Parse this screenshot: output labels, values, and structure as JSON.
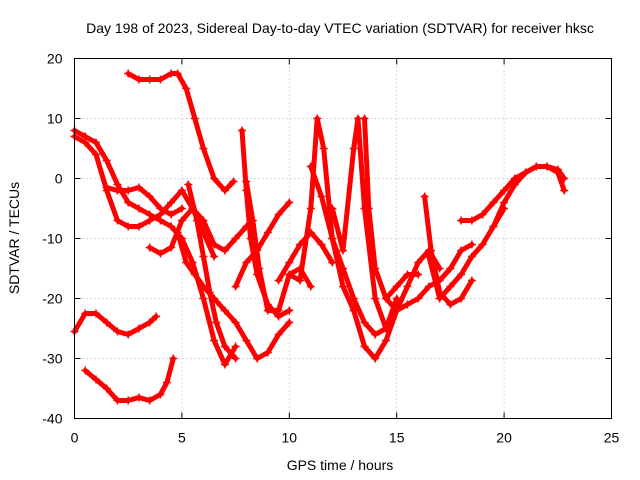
{
  "chart_data": {
    "type": "scatter",
    "title": "Day 198 of 2023, Sidereal Day-to-day VTEC variation (SDTVAR) for receiver hksc",
    "xlabel": "GPS time / hours",
    "ylabel": "SDTVAR / TECUs",
    "xlim": [
      0,
      25
    ],
    "ylim": [
      -40,
      20
    ],
    "xticks": [
      0,
      5,
      10,
      15,
      20,
      25
    ],
    "yticks": [
      -40,
      -30,
      -20,
      -10,
      0,
      10,
      20
    ],
    "grid": true,
    "marker": "+",
    "color": "#ff0000",
    "series": [
      {
        "name": "trace-1",
        "x": [
          0.0,
          0.5,
          1.0,
          1.5,
          2.0,
          2.5,
          3.0,
          3.5,
          3.8
        ],
        "y": [
          -25.5,
          -22.5,
          -22.5,
          -24.0,
          -25.5,
          -26.0,
          -25.0,
          -24.0,
          -23.0
        ]
      },
      {
        "name": "trace-2",
        "x": [
          0.5,
          1.0,
          1.5,
          2.0,
          2.5,
          3.0,
          3.5,
          4.0,
          4.3,
          4.6
        ],
        "y": [
          -32,
          -33.5,
          -35,
          -37,
          -37,
          -36.5,
          -37,
          -36,
          -34,
          -30
        ]
      },
      {
        "name": "trace-3",
        "x": [
          2.5,
          3.0,
          3.5,
          4.0,
          4.5,
          4.8,
          5.2,
          5.6,
          6.0,
          6.5,
          7.0,
          7.4
        ],
        "y": [
          17.5,
          16.5,
          16.5,
          16.5,
          17.5,
          17.5,
          15,
          10,
          5,
          0,
          -2,
          -0.5
        ]
      },
      {
        "name": "trace-4",
        "x": [
          0.0,
          0.5,
          1.0,
          1.5,
          2.0,
          2.5,
          3.0,
          3.5,
          4.0,
          4.5,
          5.0,
          5.5,
          6.0,
          6.5,
          7.0,
          7.5
        ],
        "y": [
          8,
          7,
          6,
          3,
          -1,
          -4,
          -5,
          -6,
          -7,
          -8,
          -10,
          -14,
          -20,
          -27,
          -31,
          -28
        ]
      },
      {
        "name": "trace-5",
        "x": [
          0.0,
          0.5,
          1.0,
          1.5,
          2.0,
          2.5,
          3.0,
          3.5,
          4.0,
          4.5,
          5.0,
          5.5,
          6.0,
          6.5
        ],
        "y": [
          7,
          6,
          4,
          -2,
          -7,
          -8,
          -8,
          -7,
          -6,
          -4,
          -2,
          -5,
          -9,
          -13
        ]
      },
      {
        "name": "trace-6",
        "x": [
          1.5,
          2.0,
          2.5,
          3.0,
          3.5,
          4.0,
          4.5,
          5.0
        ],
        "y": [
          -1.5,
          -2,
          -2,
          -1.5,
          -3,
          -5,
          -6,
          -5
        ]
      },
      {
        "name": "trace-7",
        "x": [
          3.5,
          4.0,
          4.5,
          5.0,
          5.5,
          6.0,
          6.5,
          7.0,
          7.5,
          8.0
        ],
        "y": [
          -11.5,
          -12.5,
          -11.5,
          -7,
          -5,
          -7,
          -11,
          -12,
          -10,
          -8
        ]
      },
      {
        "name": "trace-8",
        "x": [
          5.3,
          5.7,
          6.0,
          6.3,
          6.6,
          7.0,
          7.5
        ],
        "y": [
          -1,
          -7,
          -13,
          -19,
          -24,
          -28,
          -30
        ]
      },
      {
        "name": "trace-9",
        "x": [
          4.8,
          5.2,
          5.6,
          6.0,
          6.5,
          7.0,
          7.5,
          8.0,
          8.5,
          9.0,
          9.5,
          10.0
        ],
        "y": [
          -9,
          -14,
          -16,
          -18,
          -20,
          -22,
          -24,
          -27,
          -30,
          -29,
          -26,
          -24
        ]
      },
      {
        "name": "trace-10",
        "x": [
          7.8,
          8.0,
          8.2,
          8.5,
          9.0,
          9.5,
          10.0
        ],
        "y": [
          8,
          -2,
          -10,
          -16,
          -21,
          -23,
          -22
        ]
      },
      {
        "name": "trace-11",
        "x": [
          7.5,
          8.0,
          8.5,
          9.0,
          9.5,
          10.0
        ],
        "y": [
          -18,
          -14,
          -12,
          -9,
          -6,
          -4
        ]
      },
      {
        "name": "trace-12",
        "x": [
          8.0,
          8.3,
          8.6,
          9.0,
          9.5,
          10.0,
          10.5,
          11.0
        ],
        "y": [
          -0.5,
          -7,
          -15,
          -22,
          -22,
          -16,
          -15,
          -18
        ]
      },
      {
        "name": "trace-13",
        "x": [
          9.5,
          10.0,
          10.5,
          11.0,
          11.5,
          12.0
        ],
        "y": [
          -17,
          -14,
          -11,
          -9,
          -11,
          -14
        ]
      },
      {
        "name": "trace-14",
        "x": [
          10.0,
          10.5,
          11.0,
          11.3,
          11.6,
          12.0,
          12.5,
          13.0
        ],
        "y": [
          -16,
          -17,
          -5,
          10,
          5,
          -10,
          -18,
          -22
        ]
      },
      {
        "name": "trace-15",
        "x": [
          11.0,
          11.5,
          12.0,
          12.5,
          13.0,
          13.5,
          14.0,
          14.5,
          15.0
        ],
        "y": [
          2,
          -3,
          -10,
          -15,
          -20,
          -24,
          -26,
          -25,
          -22
        ]
      },
      {
        "name": "trace-16",
        "x": [
          12.0,
          12.5,
          13.0,
          13.2,
          13.5,
          14.0,
          14.5,
          15.0
        ],
        "y": [
          -5,
          -12,
          5,
          10,
          -5,
          -20,
          -25,
          -20
        ]
      },
      {
        "name": "trace-17",
        "x": [
          13.5,
          13.7,
          14.0,
          14.5,
          15.0,
          15.5,
          16.0
        ],
        "y": [
          10,
          -5,
          -15,
          -20,
          -18,
          -16,
          -16
        ]
      },
      {
        "name": "trace-18",
        "x": [
          13.0,
          13.5,
          14.0,
          14.5,
          15.0,
          15.5,
          16.0,
          16.5,
          17.0
        ],
        "y": [
          -22,
          -28,
          -30,
          -27,
          -22,
          -18,
          -14,
          -12,
          -15
        ]
      },
      {
        "name": "trace-19",
        "x": [
          14.5,
          15.0,
          15.5,
          16.0,
          16.5,
          17.0,
          17.5,
          18.0,
          18.5
        ],
        "y": [
          -20,
          -22,
          -21,
          -20,
          -18,
          -17,
          -15,
          -12,
          -11
        ]
      },
      {
        "name": "trace-20",
        "x": [
          16.5,
          17.0,
          17.5,
          18.0,
          18.5,
          19.0,
          19.5,
          20.0
        ],
        "y": [
          -13,
          -20,
          -18,
          -16,
          -13,
          -11,
          -8,
          -5
        ]
      },
      {
        "name": "trace-21",
        "x": [
          16.3,
          16.6,
          17.0,
          17.5,
          18.0,
          18.5
        ],
        "y": [
          -3,
          -12,
          -19,
          -21,
          -20,
          -17
        ]
      },
      {
        "name": "trace-22",
        "x": [
          18.0,
          18.5,
          19.0,
          19.5,
          20.0,
          20.5,
          21.0,
          21.5,
          22.0,
          22.5,
          22.8
        ],
        "y": [
          -7,
          -7,
          -6,
          -4,
          -2,
          0,
          1,
          2,
          2,
          1,
          -2
        ]
      },
      {
        "name": "trace-23",
        "x": [
          19.5,
          20.0,
          20.5,
          21.0,
          21.5,
          22.0,
          22.5,
          22.8
        ],
        "y": [
          -8,
          -4,
          -1,
          1,
          2,
          2,
          1.5,
          0
        ]
      }
    ]
  }
}
